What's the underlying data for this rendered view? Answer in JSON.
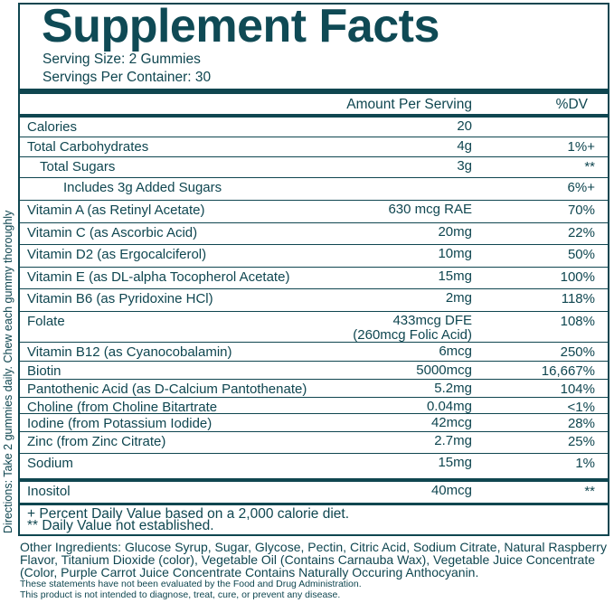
{
  "title": "Supplement Facts",
  "serving_size": "Serving Size: 2 Gummies",
  "servings_per_container": "Servings Per Container: 30",
  "header": {
    "amount": "Amount Per Serving",
    "dv": "%DV"
  },
  "rows": [
    {
      "name": "Calories",
      "amount": "20",
      "dv": ""
    },
    {
      "name": "Total Carbohydrates",
      "amount": "4g",
      "dv": "1%+"
    },
    {
      "name": "Total Sugars",
      "amount": "3g",
      "dv": "**"
    },
    {
      "name": "Includes 3g Added Sugars",
      "amount": "",
      "dv": "6%+"
    },
    {
      "name": "Vitamin A (as Retinyl Acetate)",
      "amount": "630 mcg RAE",
      "dv": "70%"
    },
    {
      "name": "Vitamin C (as Ascorbic Acid)",
      "amount": "20mg",
      "dv": "22%"
    },
    {
      "name": "Vitamin D2 (as Ergocalciferol)",
      "amount": "10mg",
      "dv": "50%"
    },
    {
      "name": "Vitamin E (as DL-alpha Tocopherol Acetate)",
      "amount": "15mg",
      "dv": "100%"
    },
    {
      "name": "Vitamin B6 (as Pyridoxine HCl)",
      "amount": "2mg",
      "dv": "118%"
    },
    {
      "name": "Folate",
      "amount": "433mcg DFE",
      "amount2": "(260mcg Folic Acid)",
      "dv": "108%"
    },
    {
      "name": "Vitamin B12 (as Cyanocobalamin)",
      "amount": "6mcg",
      "dv": "250%"
    },
    {
      "name": "Biotin",
      "amount": "5000mcg",
      "dv": "16,667%"
    },
    {
      "name": "Pantothenic Acid (as D-Calcium Pantothenate)",
      "amount": "5.2mg",
      "dv": "104%"
    },
    {
      "name": "Choline (from Choline Bitartrate",
      "amount": "0.04mg",
      "dv": "<1%"
    },
    {
      "name": "Iodine (from Potassium Iodide)",
      "amount": "42mcg",
      "dv": "28%"
    },
    {
      "name": "Zinc (from Zinc Citrate)",
      "amount": "2.7mg",
      "dv": "25%"
    },
    {
      "name": "Sodium",
      "amount": "15mg",
      "dv": "1%"
    },
    {
      "name": "Inositol",
      "amount": "40mcg",
      "dv": "**"
    }
  ],
  "footnotes": [
    "+ Percent Daily Value based on a 2,000 calorie diet.",
    "** Daily Value not established."
  ],
  "directions": "Directions: Take 2 gummies daily. Chew each gummy thoroughly",
  "other_ingredients": "Other Ingredients: Glucose Syrup, Sugar, Glycose, Pectin, Citric Acid, Sodium Citrate, Natural Raspberry Flavor, Titanium Dioxide (color), Vegetable Oil (Contains Carnauba Wax), Vegetable Juice Concentrate (Color, Purple Carrot Juice Concentrate Contains Naturally Occuring Anthocyanin.",
  "disclaimer": [
    "These statements have not been evaluated by the Food and Drug Administration.",
    "This product is not intended to diagnose, treat, cure, or prevent any disease."
  ]
}
